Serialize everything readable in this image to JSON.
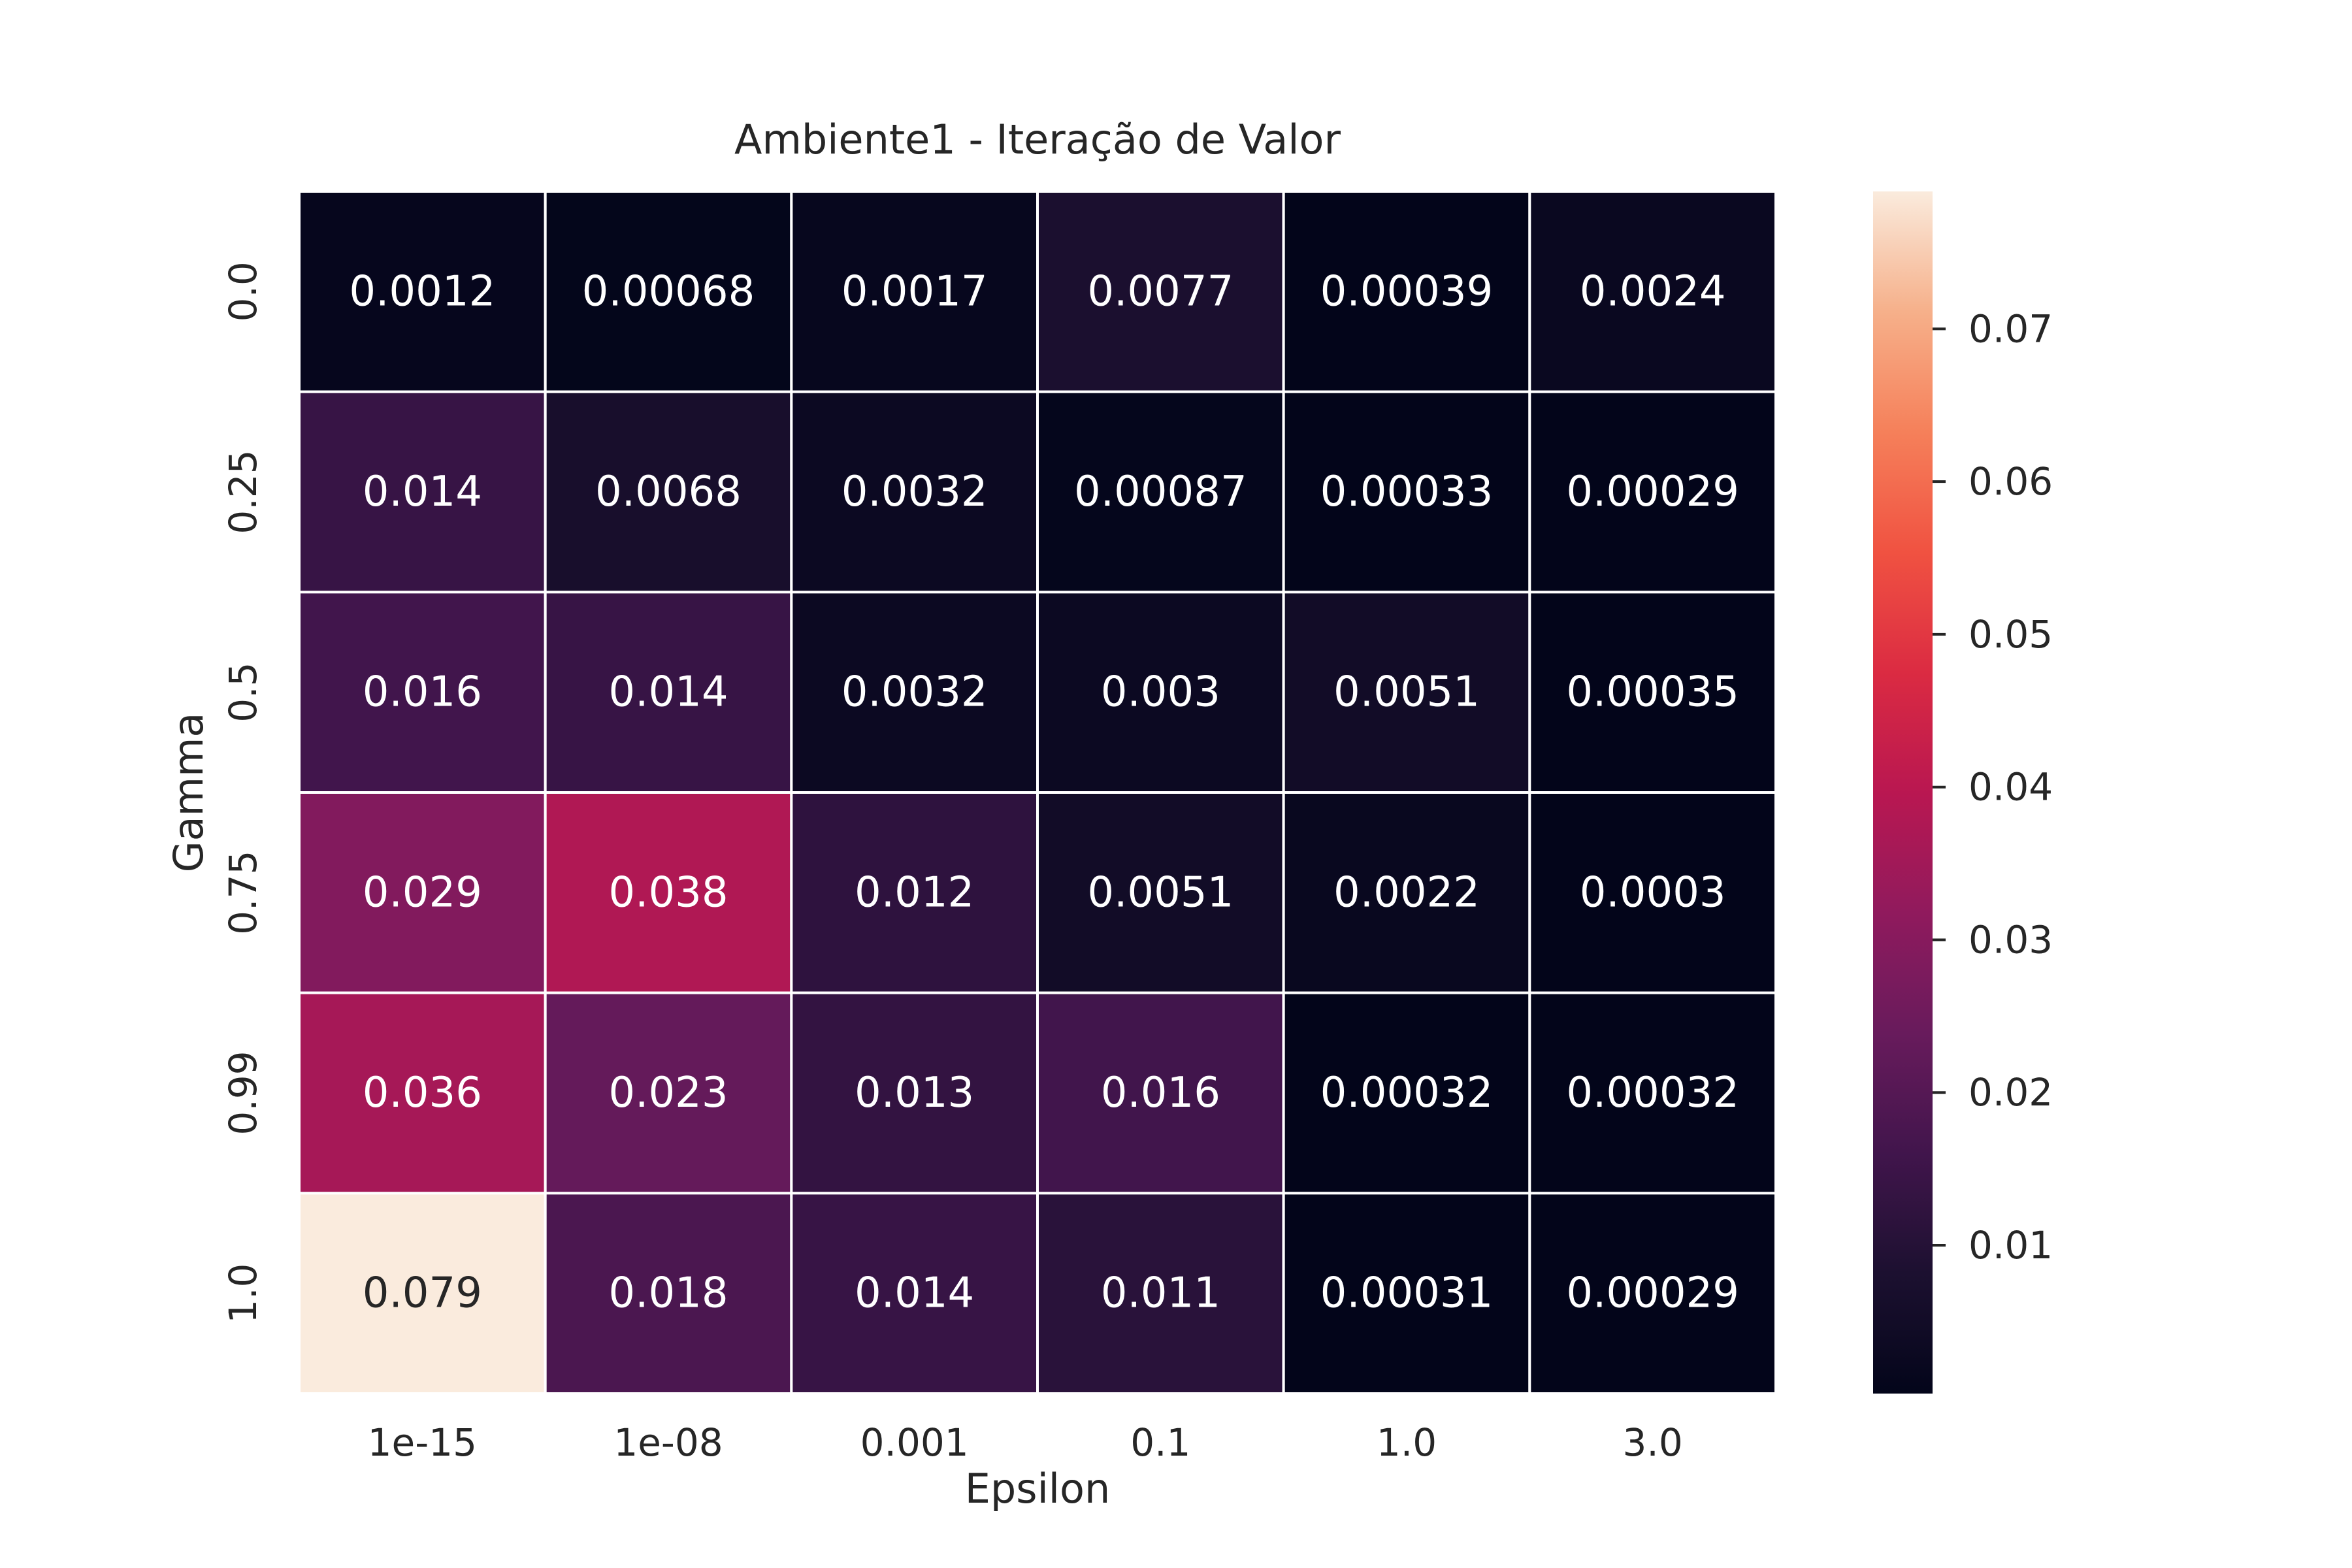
{
  "chart_data": {
    "type": "heatmap",
    "title": "Ambiente1 - Iteração de Valor",
    "xlabel": "Epsilon",
    "ylabel": "Gamma",
    "x_categories": [
      "1e-15",
      "1e-08",
      "0.001",
      "0.1",
      "1.0",
      "3.0"
    ],
    "y_categories": [
      "0.0",
      "0.25",
      "0.5",
      "0.75",
      "0.99",
      "1.0"
    ],
    "values": [
      [
        0.0012,
        0.00068,
        0.0017,
        0.0077,
        0.00039,
        0.0024
      ],
      [
        0.014,
        0.0068,
        0.0032,
        0.00087,
        0.00033,
        0.00029
      ],
      [
        0.016,
        0.014,
        0.0032,
        0.003,
        0.0051,
        0.00035
      ],
      [
        0.029,
        0.038,
        0.012,
        0.0051,
        0.0022,
        0.0003
      ],
      [
        0.036,
        0.023,
        0.013,
        0.016,
        0.00032,
        0.00032
      ],
      [
        0.079,
        0.018,
        0.014,
        0.011,
        0.00031,
        0.00029
      ]
    ],
    "cell_labels": [
      [
        "0.0012",
        "0.00068",
        "0.0017",
        "0.0077",
        "0.00039",
        "0.0024"
      ],
      [
        "0.014",
        "0.0068",
        "0.0032",
        "0.00087",
        "0.00033",
        "0.00029"
      ],
      [
        "0.016",
        "0.014",
        "0.0032",
        "0.003",
        "0.0051",
        "0.00035"
      ],
      [
        "0.029",
        "0.038",
        "0.012",
        "0.0051",
        "0.0022",
        "0.0003"
      ],
      [
        "0.036",
        "0.023",
        "0.013",
        "0.016",
        "0.00032",
        "0.00032"
      ],
      [
        "0.079",
        "0.018",
        "0.014",
        "0.011",
        "0.00031",
        "0.00029"
      ]
    ],
    "colorbar": {
      "range": [
        0.00029,
        0.079
      ],
      "ticks": [
        0.01,
        0.02,
        0.03,
        0.04,
        0.05,
        0.06,
        0.07
      ],
      "tick_labels": [
        "0.01",
        "0.02",
        "0.03",
        "0.04",
        "0.05",
        "0.06",
        "0.07"
      ],
      "colormap": "rocket"
    },
    "colors": {
      "cell_border": "#ffffff",
      "text_dark": "#262626",
      "text_light": "#ffffff"
    }
  }
}
